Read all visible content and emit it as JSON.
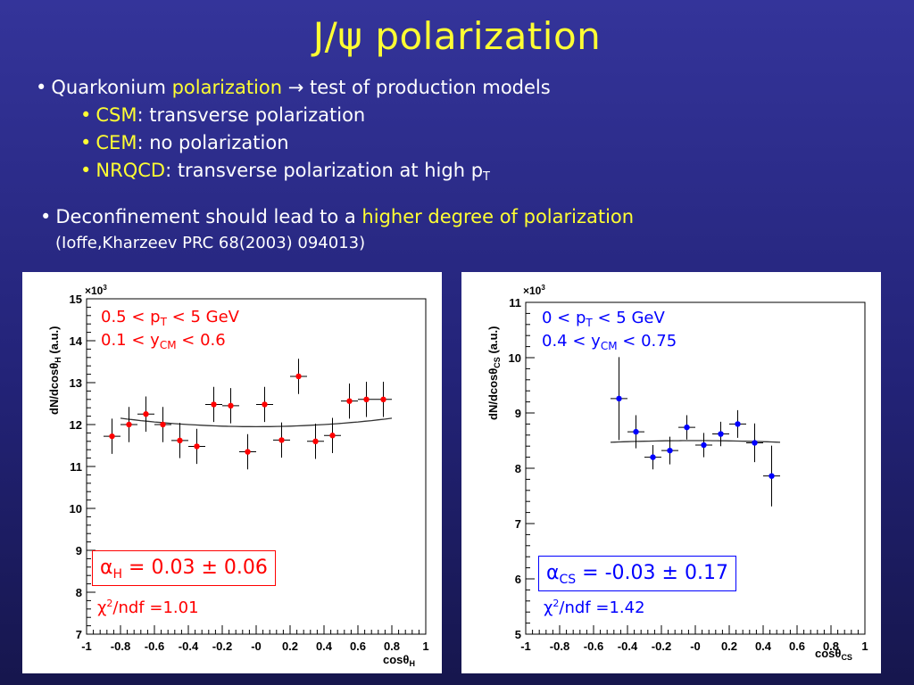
{
  "title": "J/ψ polarization",
  "bullets": {
    "b1_pre": "Quarkonium ",
    "b1_hl": "polarization",
    "b1_arrow": " → ",
    "b1_post": "test of production models",
    "csm_hl": "CSM",
    "csm_post": ": transverse polarization",
    "cem_hl": "CEM",
    "cem_post": ": no polarization",
    "nrqcd_hl": "NRQCD",
    "nrqcd_post": ": transverse polarization at high p",
    "nrqcd_sub": "T",
    "b2_pre": "Deconfinement should lead to a ",
    "b2_hl": "higher degree of polarization",
    "ref": "(Ioffe,Kharzeev PRC 68(2003) 094013)"
  },
  "bullet_symbol": "•",
  "colors": {
    "accent": "#ffff33",
    "left_series": "#ff0000",
    "right_series": "#0000ff"
  },
  "chart_data": [
    {
      "type": "scatter",
      "title": "",
      "xlabel": "cosθ",
      "xlabel_sub": "H",
      "ylabel": "dN/dcosθ",
      "ylabel_sub": "H",
      "ylabel_suffix": " (a.u.)",
      "y_exponent_base": "×10",
      "y_exponent": "3",
      "xlim": [
        -1,
        1
      ],
      "ylim": [
        7,
        15
      ],
      "xticks": [
        -1,
        -0.8,
        -0.6,
        -0.4,
        -0.2,
        0,
        0.2,
        0.4,
        0.6,
        0.8,
        1
      ],
      "xtick_labels": [
        "-1",
        "-0.8",
        "-0.6",
        "-0.4",
        "-0.2",
        "-0",
        "0.2",
        "0.4",
        "0.6",
        "0.8",
        "1"
      ],
      "yticks": [
        7,
        8,
        9,
        10,
        11,
        12,
        13,
        14,
        15
      ],
      "ytick_labels": [
        "7",
        "8",
        "9",
        "10",
        "11",
        "12",
        "13",
        "14",
        "15"
      ],
      "cut_line1_pre": "0.5 < p",
      "cut_line1_sub": "T",
      "cut_line1_post": " < 5 GeV",
      "cut_line2_pre": "0.1 < y",
      "cut_line2_sub": "CM",
      "cut_line2_post": " < 0.6",
      "alpha_symbol": "α",
      "alpha_sub": "H",
      "alpha_text": " = 0.03 ± 0.06",
      "chi_symbol": "χ",
      "chi_sup": "2",
      "chi_text": "/ndf =1.01",
      "x": [
        -0.85,
        -0.75,
        -0.65,
        -0.55,
        -0.45,
        -0.35,
        -0.25,
        -0.15,
        -0.05,
        0.05,
        0.15,
        0.25,
        0.35,
        0.45,
        0.55,
        0.65,
        0.75
      ],
      "y": [
        11.72,
        12.0,
        12.25,
        12.0,
        11.62,
        11.48,
        12.48,
        12.45,
        11.35,
        12.48,
        11.63,
        13.15,
        11.6,
        11.74,
        12.56,
        12.6,
        12.6
      ],
      "yerr": [
        0.42,
        0.42,
        0.42,
        0.42,
        0.42,
        0.42,
        0.42,
        0.42,
        0.42,
        0.42,
        0.42,
        0.42,
        0.42,
        0.42,
        0.42,
        0.42,
        0.42
      ],
      "fit_range": [
        -0.8,
        0.8
      ],
      "fit_ends": 12.15,
      "fit_min": 11.95
    },
    {
      "type": "scatter",
      "title": "",
      "xlabel": "cosθ",
      "xlabel_sub": "CS",
      "ylabel": "dN/dcosθ",
      "ylabel_sub": "CS",
      "ylabel_suffix": " (a.u.)",
      "y_exponent_base": "×10",
      "y_exponent": "3",
      "xlim": [
        -1,
        1
      ],
      "ylim": [
        5,
        11
      ],
      "xticks": [
        -1,
        -0.8,
        -0.6,
        -0.4,
        -0.2,
        0,
        0.2,
        0.4,
        0.6,
        0.8,
        1
      ],
      "xtick_labels": [
        "-1",
        "-0.8",
        "-0.6",
        "-0.4",
        "-0.2",
        "-0",
        "0.2",
        "0.4",
        "0.6",
        "0.8",
        "1"
      ],
      "yticks": [
        5,
        6,
        7,
        8,
        9,
        10,
        11
      ],
      "ytick_labels": [
        "5",
        "6",
        "7",
        "8",
        "9",
        "10",
        "11"
      ],
      "cut_line1_pre": "0 < p",
      "cut_line1_sub": "T",
      "cut_line1_post": " < 5 GeV",
      "cut_line2_pre": "0.4 < y",
      "cut_line2_sub": "CM",
      "cut_line2_post": " < 0.75",
      "alpha_symbol": "α",
      "alpha_sub": "CS",
      "alpha_text": " = -0.03 ± 0.17",
      "chi_symbol": "χ",
      "chi_sup": "2",
      "chi_text": "/ndf =1.42",
      "x": [
        -0.45,
        -0.35,
        -0.25,
        -0.15,
        -0.05,
        0.05,
        0.15,
        0.25,
        0.35,
        0.45
      ],
      "y": [
        9.26,
        8.66,
        8.2,
        8.32,
        8.74,
        8.42,
        8.62,
        8.8,
        8.46,
        7.86
      ],
      "yerr": [
        0.75,
        0.3,
        0.22,
        0.25,
        0.22,
        0.22,
        0.22,
        0.25,
        0.35,
        0.55
      ],
      "fit_range": [
        -0.5,
        0.5
      ],
      "fit_ends": 8.47,
      "fit_min": 8.5
    }
  ]
}
